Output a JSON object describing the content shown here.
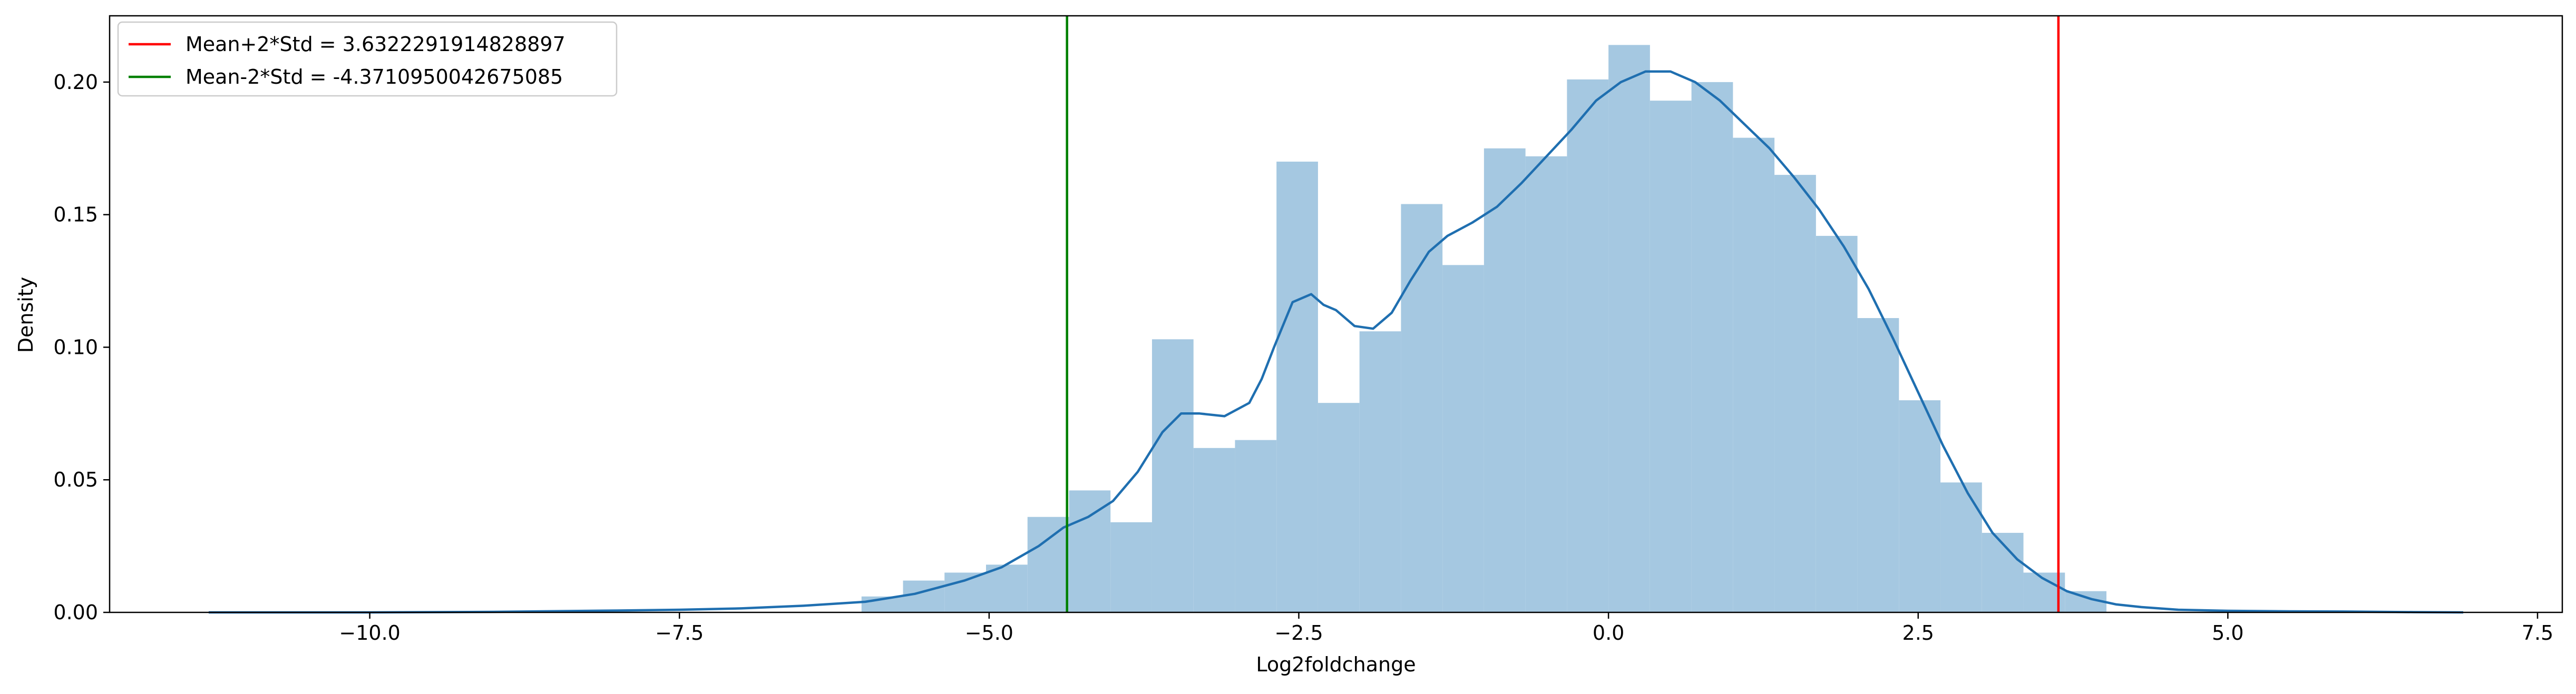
{
  "chart_data": {
    "type": "bar",
    "xlabel": "Log2foldchange",
    "ylabel": "Density",
    "xlim": [
      -12.1,
      7.7
    ],
    "ylim": [
      0.0,
      0.225
    ],
    "x_ticks": [
      -10.0,
      -7.5,
      -5.0,
      -2.5,
      0.0,
      2.5,
      5.0,
      7.5
    ],
    "x_tick_labels": [
      "−10.0",
      "−7.5",
      "−5.0",
      "−2.5",
      "0.0",
      "2.5",
      "5.0",
      "7.5"
    ],
    "y_ticks": [
      0.0,
      0.05,
      0.1,
      0.15,
      0.2
    ],
    "y_tick_labels": [
      "0.00",
      "0.05",
      "0.10",
      "0.15",
      "0.20"
    ],
    "grid": false,
    "legend_position": "top-left",
    "histogram": {
      "color": "#a5c8e1",
      "bin_edges": [
        -6.03,
        -5.695,
        -5.36,
        -5.025,
        -4.69,
        -4.355,
        -4.02,
        -3.685,
        -3.35,
        -3.015,
        -2.68,
        -2.345,
        -2.01,
        -1.675,
        -1.34,
        -1.005,
        -0.67,
        -0.335,
        0.0,
        0.335,
        0.67,
        1.005,
        1.34,
        1.675,
        2.01,
        2.345,
        2.68,
        3.015,
        3.35,
        3.685,
        4.02
      ],
      "densities": [
        0.006,
        0.012,
        0.015,
        0.018,
        0.036,
        0.046,
        0.034,
        0.103,
        0.062,
        0.065,
        0.17,
        0.079,
        0.106,
        0.154,
        0.131,
        0.175,
        0.172,
        0.201,
        0.214,
        0.193,
        0.2,
        0.179,
        0.165,
        0.142,
        0.111,
        0.08,
        0.049,
        0.03,
        0.015,
        0.008
      ]
    },
    "kde": {
      "color": "#1f6fb0",
      "x": [
        -11.3,
        -10.0,
        -9.0,
        -8.0,
        -7.5,
        -7.0,
        -6.5,
        -6.0,
        -5.6,
        -5.2,
        -4.9,
        -4.6,
        -4.4,
        -4.2,
        -4.0,
        -3.8,
        -3.6,
        -3.45,
        -3.3,
        -3.1,
        -2.9,
        -2.8,
        -2.7,
        -2.55,
        -2.4,
        -2.3,
        -2.2,
        -2.05,
        -1.9,
        -1.75,
        -1.6,
        -1.45,
        -1.3,
        -1.1,
        -0.9,
        -0.7,
        -0.5,
        -0.3,
        -0.1,
        0.1,
        0.3,
        0.5,
        0.7,
        0.9,
        1.1,
        1.3,
        1.5,
        1.7,
        1.9,
        2.1,
        2.3,
        2.5,
        2.7,
        2.9,
        3.1,
        3.3,
        3.5,
        3.7,
        3.9,
        4.1,
        4.3,
        4.6,
        5.0,
        5.5,
        6.0,
        6.5,
        6.9
      ],
      "y": [
        0.0,
        0.0,
        0.0002,
        0.0007,
        0.001,
        0.0015,
        0.0025,
        0.004,
        0.007,
        0.012,
        0.017,
        0.025,
        0.032,
        0.036,
        0.042,
        0.053,
        0.068,
        0.075,
        0.075,
        0.074,
        0.079,
        0.088,
        0.1,
        0.117,
        0.12,
        0.116,
        0.114,
        0.108,
        0.107,
        0.113,
        0.125,
        0.136,
        0.142,
        0.147,
        0.153,
        0.162,
        0.172,
        0.182,
        0.193,
        0.2,
        0.204,
        0.204,
        0.2,
        0.193,
        0.184,
        0.175,
        0.164,
        0.152,
        0.138,
        0.122,
        0.103,
        0.083,
        0.063,
        0.045,
        0.03,
        0.02,
        0.013,
        0.008,
        0.005,
        0.003,
        0.002,
        0.001,
        0.0006,
        0.0004,
        0.0003,
        0.0001,
        0.0
      ]
    },
    "vlines": [
      {
        "x": 3.6322291914828897,
        "color": "#ff0000",
        "label": "Mean+2*Std = 3.6322291914828897"
      },
      {
        "x": -4.3710950042675085,
        "color": "#008000",
        "label": "Mean-2*Std = -4.3710950042675085"
      }
    ]
  }
}
